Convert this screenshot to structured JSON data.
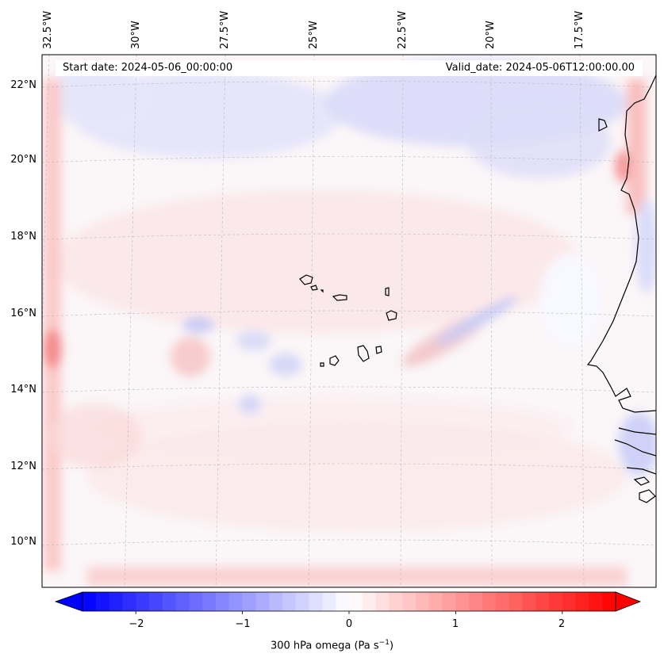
{
  "map": {
    "lon_ticks": [
      "32.5°W",
      "30°W",
      "27.5°W",
      "25°W",
      "22.5°W",
      "20°W",
      "17.5°W"
    ],
    "lat_ticks": [
      "22°N",
      "20°N",
      "18°N",
      "16°N",
      "14°N",
      "12°N",
      "10°N"
    ],
    "start_date": "Start date: 2024-05-06_00:00:00",
    "valid_date": "Valid_date: 2024-05-06T12:00:00.00",
    "field": "300 hPa omega",
    "colormap": "bwr",
    "colors": {
      "negative": "#0000ff",
      "zero": "#ffffff",
      "positive": "#ff0000"
    }
  },
  "colorbar": {
    "ticks": [
      "−2",
      "−1",
      "0",
      "1",
      "2"
    ],
    "tick_values": [
      -2,
      -1,
      0,
      1,
      2
    ],
    "range": [
      -2.5,
      2.5
    ],
    "extend": "both",
    "label_main": "300 hPa omega (Pa s",
    "label_sup": "−1",
    "label_end": ")"
  }
}
